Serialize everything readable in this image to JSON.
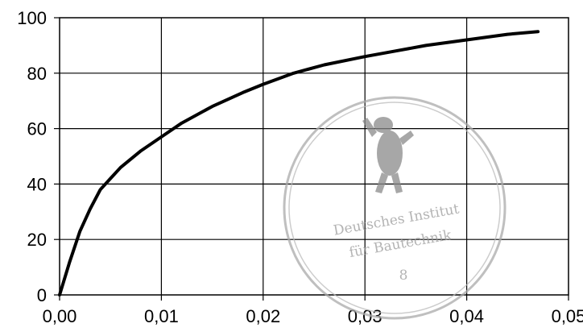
{
  "chart_data": {
    "type": "line",
    "title": "",
    "xlabel": "",
    "ylabel": "",
    "xlim": [
      0,
      0.05
    ],
    "ylim": [
      0,
      100
    ],
    "grid": true,
    "legend": "none",
    "x_ticks": [
      0,
      0.01,
      0.02,
      0.03,
      0.04,
      0.05
    ],
    "x_tick_labels": [
      "0,00",
      "0,01",
      "0,02",
      "0,03",
      "0,04",
      "0,05"
    ],
    "y_ticks": [
      0,
      20,
      40,
      60,
      80,
      100
    ],
    "y_tick_labels": [
      "0",
      "20",
      "40",
      "60",
      "80",
      "100"
    ],
    "series": [
      {
        "color": "#000000",
        "x": [
          0,
          0.001,
          0.002,
          0.003,
          0.004,
          0.005,
          0.006,
          0.008,
          0.01,
          0.012,
          0.015,
          0.018,
          0.02,
          0.023,
          0.026,
          0.03,
          0.033,
          0.036,
          0.04,
          0.044,
          0.047
        ],
        "y": [
          0,
          12,
          23,
          31,
          38,
          42,
          46,
          52,
          57,
          62,
          68,
          73,
          76,
          80,
          83,
          86,
          88,
          90,
          92,
          94,
          95
        ]
      }
    ]
  },
  "stamp": {
    "line1": "Deutsches Institut",
    "line2": "für Bautechnik",
    "line3": "8"
  }
}
